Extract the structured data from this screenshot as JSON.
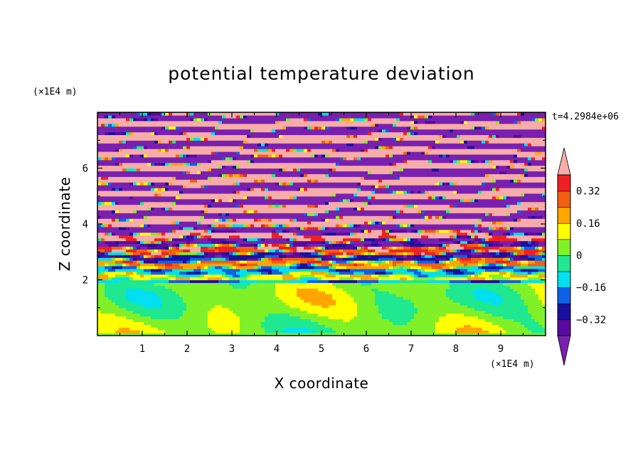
{
  "chart_data": {
    "type": "heatmap",
    "title": "potential temperature deviation",
    "xlabel": "X coordinate",
    "ylabel": "Z coordinate",
    "x_unit": "(×1E4 m)",
    "y_unit": "(×1E4 m)",
    "time_label": "t=4.2984e+06",
    "xlim": [
      0,
      10
    ],
    "ylim": [
      0,
      8
    ],
    "x_ticks": [
      "1",
      "2",
      "3",
      "4",
      "5",
      "6",
      "7",
      "8",
      "9"
    ],
    "y_ticks": [
      "2",
      "4",
      "6"
    ],
    "colorbar": {
      "levels": [
        -0.4,
        -0.32,
        -0.24,
        -0.16,
        -0.08,
        0,
        0.08,
        0.16,
        0.24,
        0.32,
        0.4
      ],
      "colors": [
        "#5a0aa0",
        "#1a10a0",
        "#1060e6",
        "#00e0f0",
        "#20e890",
        "#80f028",
        "#ffff00",
        "#ffa500",
        "#f06010",
        "#f02020"
      ],
      "under_color": "#7a20b0",
      "over_color": "#f6aca8",
      "tick_labels": [
        {
          "value": 0.32,
          "label": "0.32"
        },
        {
          "value": 0.16,
          "label": "0.16"
        },
        {
          "value": 0,
          "label": "0"
        },
        {
          "value": -0.16,
          "label": "−0.16"
        },
        {
          "value": -0.32,
          "label": "−0.32"
        }
      ]
    }
  }
}
